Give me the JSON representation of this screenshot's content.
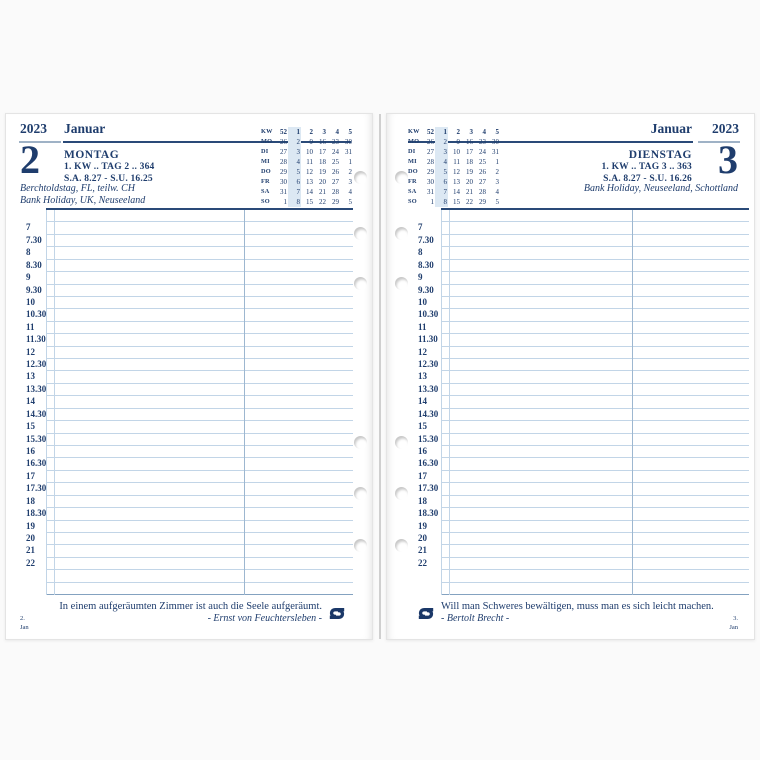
{
  "document": {
    "type": "diary-week-spread",
    "brand_logo": "sigel-s-logo"
  },
  "colors": {
    "navy": "#1f3d6d",
    "grid_line": "#c2d5e7",
    "header_rule": "#2a4a78",
    "week_highlight": "#dce8f3"
  },
  "mini_calendar": {
    "header_label": "KW",
    "header_values": [
      "52",
      "1",
      "2",
      "3",
      "4",
      "5"
    ],
    "highlight_col_index": 1,
    "rows": [
      {
        "day": "MO",
        "values": [
          "26",
          "2",
          "9",
          "16",
          "23",
          "30"
        ]
      },
      {
        "day": "DI",
        "values": [
          "27",
          "3",
          "10",
          "17",
          "24",
          "31"
        ]
      },
      {
        "day": "MI",
        "values": [
          "28",
          "4",
          "11",
          "18",
          "25",
          "1"
        ]
      },
      {
        "day": "DO",
        "values": [
          "29",
          "5",
          "12",
          "19",
          "26",
          "2"
        ]
      },
      {
        "day": "FR",
        "values": [
          "30",
          "6",
          "13",
          "20",
          "27",
          "3"
        ]
      },
      {
        "day": "SA",
        "values": [
          "31",
          "7",
          "14",
          "21",
          "28",
          "4"
        ]
      },
      {
        "day": "SO",
        "values": [
          "1",
          "8",
          "15",
          "22",
          "29",
          "5"
        ]
      }
    ]
  },
  "time_slots": [
    "7",
    "7.30",
    "8",
    "8.30",
    "9",
    "9.30",
    "10",
    "10.30",
    "11",
    "11.30",
    "12",
    "12.30",
    "13",
    "13.30",
    "14",
    "14.30",
    "15",
    "15.30",
    "16",
    "16.30",
    "17",
    "17.30",
    "18",
    "18.30",
    "19",
    "20",
    "21",
    "22"
  ],
  "pages": {
    "left": {
      "year": "2023",
      "month": "Januar",
      "weekday": "MONTAG",
      "day_number": "2",
      "week_info": "1. KW .. TAG 2 .. 364",
      "sun_info": "S.A. 8.27 - S.U. 16.25",
      "holidays": [
        "Berchtoldstag, FL, teilw. CH",
        "Bank Holiday, UK, Neuseeland"
      ],
      "quote": "In einem aufgeräumten Zimmer ist auch die Seele aufgeräumt.",
      "quote_author": "- Ernst von Feuchtersleben -",
      "footer_day": "2.",
      "footer_month": "Jan"
    },
    "right": {
      "year": "2023",
      "month": "Januar",
      "weekday": "DIENSTAG",
      "day_number": "3",
      "week_info": "1. KW .. TAG 3 .. 363",
      "sun_info": "S.A. 8.27 - S.U. 16.26",
      "holidays": [
        "Bank Holiday, Neuseeland, Schottland"
      ],
      "quote": "Will man Schweres bewältigen, muss man es sich leicht machen.",
      "quote_author": "- Bertolt Brecht -",
      "footer_day": "3.",
      "footer_month": "Jan"
    }
  }
}
